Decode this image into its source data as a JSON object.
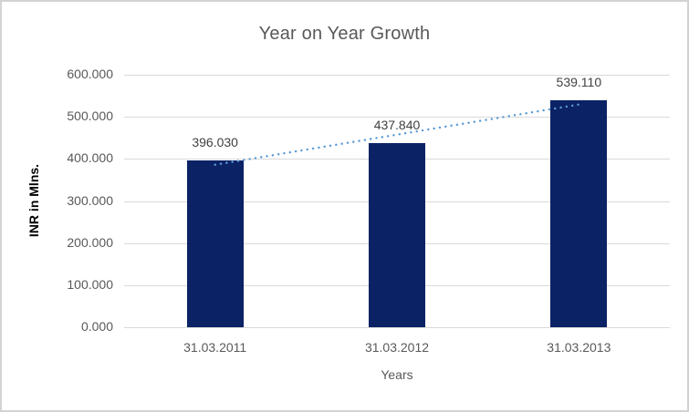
{
  "chart_data": {
    "type": "bar",
    "title": "Year on Year Growth",
    "xlabel": "Years",
    "ylabel": "INR in Mlns.",
    "categories": [
      "31.03.2011",
      "31.03.2012",
      "31.03.2013"
    ],
    "values": [
      396.03,
      437.84,
      539.11
    ],
    "data_labels": [
      "396.030",
      "437.840",
      "539.110"
    ],
    "ylim": [
      0,
      600
    ],
    "ytick_interval": 100,
    "ytick_labels": [
      "0.000",
      "100.000",
      "200.000",
      "300.000",
      "400.000",
      "500.000",
      "600.000"
    ],
    "grid": true,
    "legend": "none",
    "trendline": {
      "type": "linear",
      "style": "dotted",
      "color": "#5b9bd5"
    },
    "colors": {
      "bar": "#0b2265",
      "gridline": "#d9d9d9",
      "axis_text": "#595959",
      "data_label": "#404040",
      "title_text": "#595959",
      "y_axis_title_text": "#000000",
      "chart_border": "#d3d3d3",
      "background": "#ffffff"
    }
  }
}
